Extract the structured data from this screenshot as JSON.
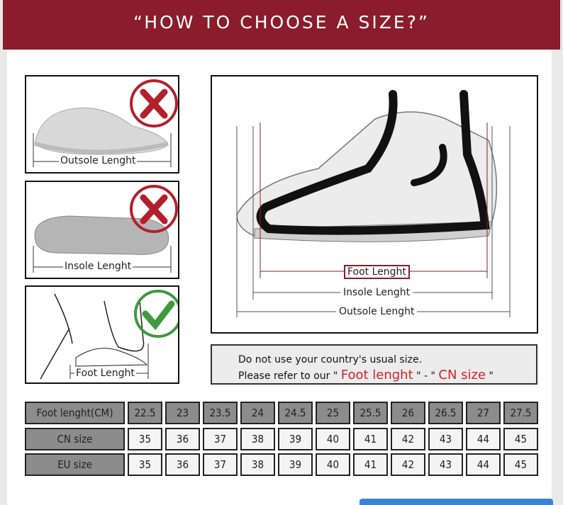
{
  "title": "“HOW TO CHOOSE A SIZE?”",
  "left_panels": [
    {
      "caption": "Outsole Lenght",
      "verdict": "wrong",
      "mark": "x-icon"
    },
    {
      "caption": "Insole Lenght",
      "verdict": "wrong",
      "mark": "x-icon"
    },
    {
      "caption": "Foot Lenght",
      "verdict": "correct",
      "mark": "check-icon"
    }
  ],
  "diagram": {
    "foot_label": "Foot Lenght",
    "insole_label": "Insole Lenght",
    "outsole_label": "Outsole Lenght"
  },
  "note": {
    "line1": "Do not use your country's usual size.",
    "line2_prefix": "Please refer to our \"",
    "highlight1": "Foot lenght",
    "middle": "\" - \"",
    "highlight2": "CN size",
    "suffix": "\""
  },
  "table": {
    "rows": [
      {
        "header": "Foot lenght(CM)",
        "values": [
          "22.5",
          "23",
          "23.5",
          "24",
          "24.5",
          "25",
          "25.5",
          "26",
          "26.5",
          "27",
          "27.5"
        ]
      },
      {
        "header": "CN size",
        "values": [
          "35",
          "36",
          "37",
          "38",
          "39",
          "40",
          "41",
          "42",
          "43",
          "44",
          "45"
        ]
      },
      {
        "header": "EU size",
        "values": [
          "35",
          "36",
          "37",
          "38",
          "39",
          "40",
          "41",
          "42",
          "43",
          "44",
          "45"
        ]
      }
    ]
  },
  "colors": {
    "header": "#8a1c2b",
    "wrong": "#b3202c",
    "correct": "#3f9a3f",
    "highlight": "#d6212e"
  }
}
